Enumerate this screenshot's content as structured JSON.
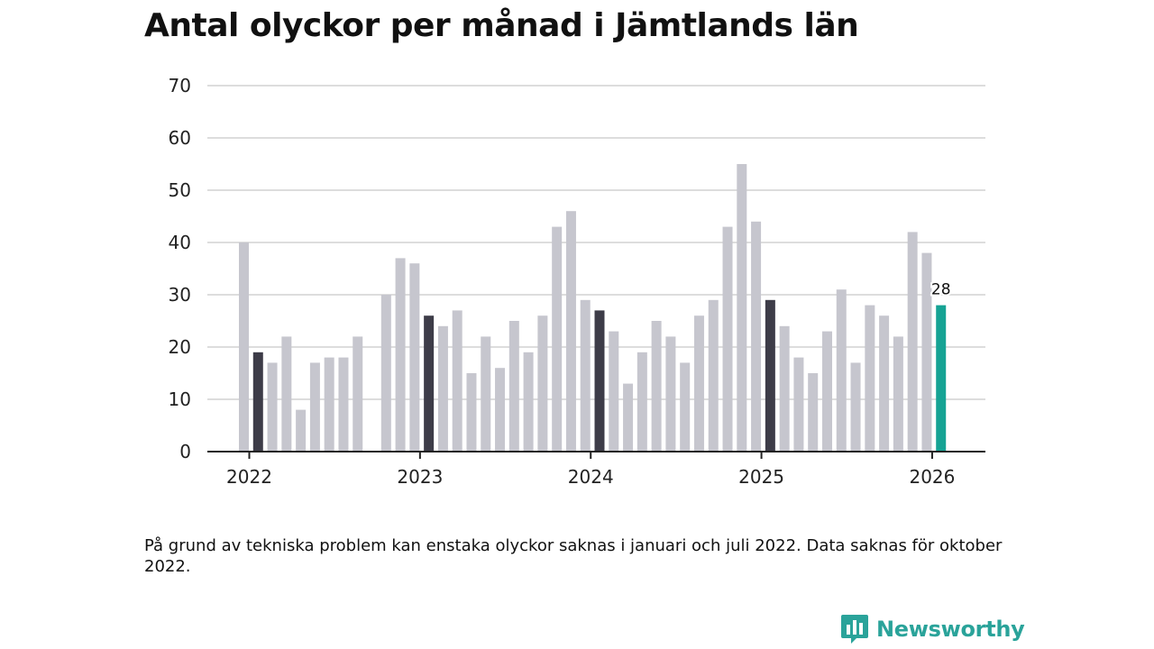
{
  "title": "Antal olyckor per månad i Jämtlands län",
  "footnote": "På grund av tekniska problem kan enstaka olyckor saknas i januari och juli 2022. Data saknas för oktober 2022.",
  "brand": {
    "name": "Newsworthy",
    "icon": "newsworthy-logo-icon"
  },
  "colors": {
    "bar": "#c6c6ce",
    "highlight": "#3d3c48",
    "latest": "#16a394",
    "grid": "#dddddd",
    "axis": "#222222"
  },
  "chart_data": {
    "type": "bar",
    "title": "Antal olyckor per månad i Jämtlands län",
    "xlabel": "",
    "ylabel": "",
    "ylim": [
      0,
      70
    ],
    "yticks": [
      0,
      10,
      20,
      30,
      40,
      50,
      60,
      70
    ],
    "xticks": [
      "2022",
      "2023",
      "2024",
      "2025",
      "2026"
    ],
    "grid": true,
    "note": "Dark bars mark February each year; the latest month is highlighted in teal and labelled.",
    "months": [
      "2022-01",
      "2022-02",
      "2022-03",
      "2022-04",
      "2022-05",
      "2022-06",
      "2022-07",
      "2022-08",
      "2022-09",
      "2022-10",
      "2022-11",
      "2022-12",
      "2023-01",
      "2023-02",
      "2023-03",
      "2023-04",
      "2023-05",
      "2023-06",
      "2023-07",
      "2023-08",
      "2023-09",
      "2023-10",
      "2023-11",
      "2023-12",
      "2024-01",
      "2024-02",
      "2024-03",
      "2024-04",
      "2024-05",
      "2024-06",
      "2024-07",
      "2024-08",
      "2024-09",
      "2024-10",
      "2024-11",
      "2024-12",
      "2025-01",
      "2025-02",
      "2025-03",
      "2025-04",
      "2025-05",
      "2025-06",
      "2025-07",
      "2025-08",
      "2025-09",
      "2025-10",
      "2025-11",
      "2025-12",
      "2026-01",
      "2026-02"
    ],
    "values": [
      40,
      19,
      17,
      22,
      8,
      17,
      18,
      18,
      22,
      null,
      30,
      37,
      36,
      26,
      24,
      27,
      15,
      22,
      16,
      25,
      19,
      26,
      43,
      46,
      29,
      27,
      23,
      13,
      19,
      25,
      22,
      17,
      26,
      29,
      43,
      55,
      44,
      29,
      24,
      18,
      15,
      23,
      31,
      17,
      28,
      26,
      22,
      42,
      38,
      28
    ],
    "highlight_indices": [
      1,
      13,
      25,
      37
    ],
    "latest_index": 49,
    "latest_label": "28"
  }
}
